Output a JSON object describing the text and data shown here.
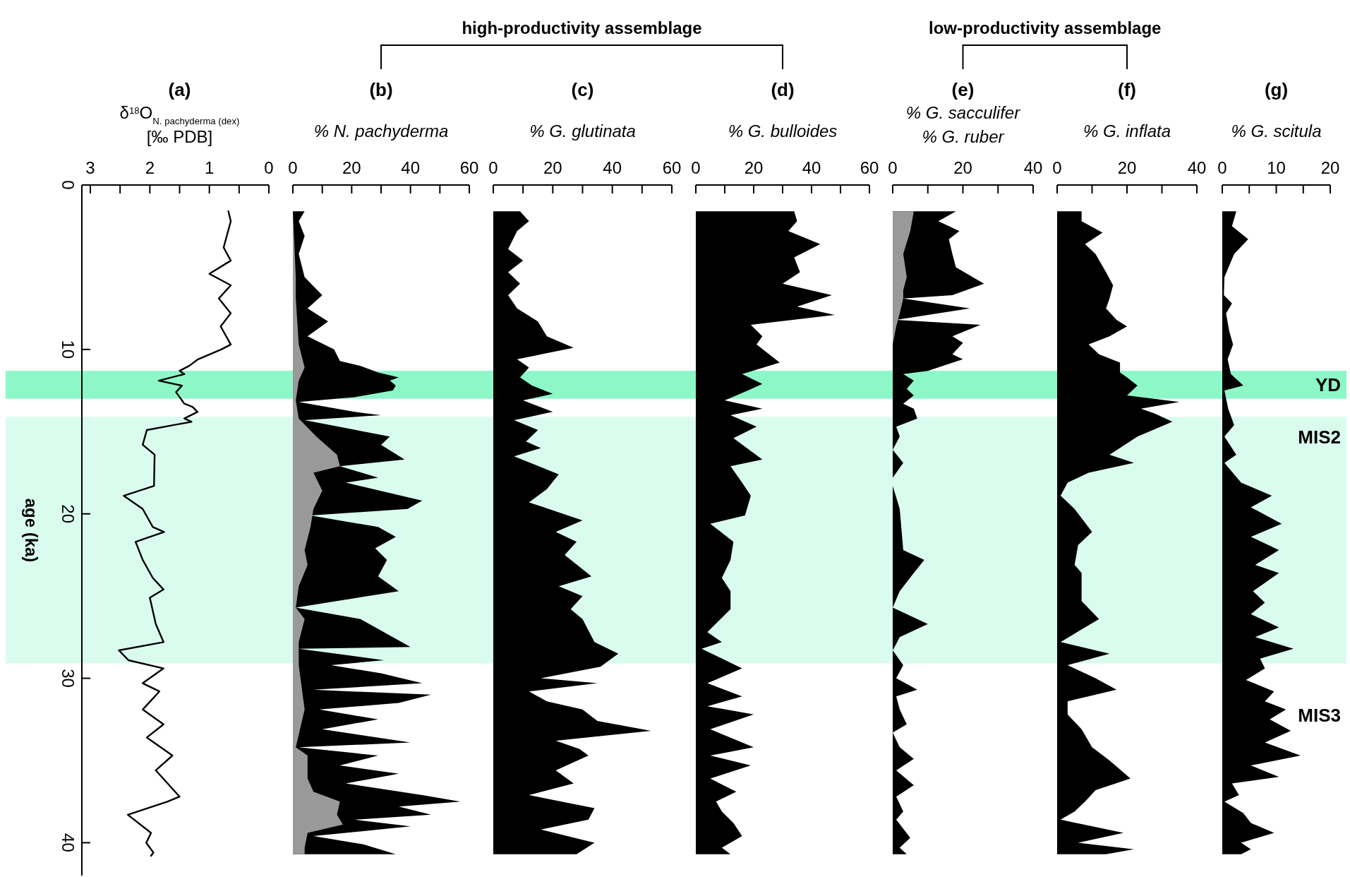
{
  "chart_data": [
    {
      "type": "line",
      "orientation": "horizontal",
      "title": "(a)",
      "xlabel": "δ$^{18}$O$_{N. pachyderma (dex)}$\n[‰ PDB]",
      "ylabel": "age (ka)",
      "xlim": [
        3,
        0
      ],
      "xticks": [
        3,
        {
          "value": 2.5,
          "label": null
        },
        2,
        {
          "value": 1.5,
          "label": null
        },
        1,
        {
          "value": 0.5,
          "label": null
        },
        0
      ],
      "ylim": [
        42,
        0
      ],
      "yticks": [
        0,
        10,
        20,
        30,
        40
      ],
      "bands": [
        {
          "axis": "y",
          "from": 11.3,
          "to": 13.0,
          "color": "#8ef7c8"
        },
        {
          "axis": "y",
          "from": 14.1,
          "to": 29.1,
          "color": "#dafcef"
        }
      ],
      "series": [
        {
          "color": "#000000",
          "x": [
            1.6,
            2.2,
            3.8,
            4.6,
            5.4,
            6.1,
            6.9,
            7.8,
            8.6,
            9.7,
            10.0,
            10.6,
            11.0,
            11.3,
            11.5,
            11.9,
            12.2,
            12.6,
            13.3,
            13.5,
            13.8,
            14.2,
            14.4,
            14.9,
            15.8,
            16.4,
            18.3,
            18.9,
            19.7,
            20.8,
            21.1,
            21.7,
            22.8,
            23.9,
            24.6,
            25.1,
            26.7,
            27.8,
            28.3,
            28.9,
            29.4,
            30.3,
            30.8,
            31.9,
            32.8,
            33.6,
            34.7,
            35.6,
            37.2,
            37.5,
            38.3,
            39.4,
            40.0,
            40.6,
            40.8
          ],
          "values": [
            0.68,
            0.64,
            0.76,
            0.64,
            1.0,
            0.64,
            0.84,
            0.64,
            0.81,
            0.64,
            0.8,
            1.19,
            1.34,
            1.5,
            1.42,
            1.85,
            1.46,
            1.56,
            1.42,
            1.28,
            1.2,
            1.42,
            1.3,
            2.05,
            2.12,
            1.92,
            1.93,
            2.44,
            2.12,
            1.95,
            1.76,
            2.24,
            2.12,
            1.95,
            1.77,
            2.0,
            1.9,
            1.77,
            2.52,
            2.36,
            1.77,
            2.12,
            1.84,
            2.12,
            1.77,
            2.05,
            1.62,
            1.9,
            1.5,
            1.7,
            2.37,
            1.98,
            2.06,
            1.94,
            1.98
          ]
        }
      ]
    },
    {
      "type": "area",
      "orientation": "horizontal",
      "title": "(b)",
      "xlabel": "% N. pachyderma",
      "xlim": [
        0,
        60
      ],
      "xticks": [
        0,
        {
          "value": 10,
          "label": null
        },
        20,
        {
          "value": 30,
          "label": null
        },
        40,
        {
          "value": 50,
          "label": null
        },
        60
      ],
      "ylim": [
        42,
        0
      ],
      "tick_labels": "x",
      "bands": [
        {
          "axis": "y",
          "from": 11.3,
          "to": 13.0,
          "color": "#8ef7c8"
        },
        {
          "axis": "y",
          "from": 14.1,
          "to": 29.1,
          "color": "#dafcef"
        }
      ],
      "series": [
        {
          "color": "#000000",
          "x": [
            1.6,
            2.2,
            3.1,
            4.2,
            5.6,
            6.7,
            7.5,
            8.3,
            9.2,
            10.0,
            10.7,
            11.0,
            11.4,
            11.7,
            11.9,
            12.2,
            12.5,
            12.9,
            13.2,
            13.8,
            14.0,
            14.3,
            15.3,
            15.8,
            16.7,
            17.1,
            17.8,
            18.1,
            19.2,
            19.7,
            20.1,
            20.8,
            21.4,
            22.1,
            22.8,
            23.8,
            24.7,
            25.7,
            26.4,
            28.1,
            28.2,
            28.9,
            29.2,
            29.7,
            30.3,
            30.7,
            31.0,
            31.5,
            31.9,
            32.5,
            33.1,
            33.9,
            34.2,
            34.7,
            35.3,
            35.8,
            36.4,
            37.1,
            37.5,
            37.8,
            38.3,
            38.6,
            39.0,
            39.6,
            40.1,
            40.7
          ],
          "values": [
            4,
            2,
            4,
            2,
            4,
            10,
            5,
            12,
            5,
            14,
            16,
            23,
            29,
            36,
            33,
            35,
            34,
            21,
            2,
            21,
            30,
            4,
            33,
            30,
            38,
            16,
            29,
            18,
            44,
            39,
            6,
            29,
            35,
            28,
            32,
            29,
            36,
            1,
            23,
            40,
            2,
            31,
            13,
            30,
            44,
            7,
            47,
            36,
            9,
            29,
            10,
            40,
            2,
            29,
            16,
            36,
            18,
            44,
            57,
            36,
            47,
            21,
            40,
            7,
            24,
            35
          ]
        },
        {
          "color": "#999999",
          "x": [
            1.6,
            5.6,
            6.9,
            9.7,
            11.1,
            11.9,
            13.1,
            14.2,
            15.3,
            16.4,
            17.1,
            17.5,
            18.6,
            19.7,
            20.8,
            22.2,
            23.1,
            24.4,
            25.7,
            26.4,
            27.8,
            29.2,
            31.9,
            34.2,
            34.7,
            36.1,
            36.9,
            37.5,
            38.3,
            38.9,
            39.4,
            40.3,
            40.7
          ],
          "values": [
            0,
            1,
            1,
            2,
            4,
            2,
            1,
            2,
            8,
            15,
            16,
            7,
            10,
            7,
            6,
            4,
            5,
            2,
            1,
            4,
            2,
            2,
            4,
            1,
            5,
            5,
            7,
            16,
            15,
            17,
            5,
            4,
            4
          ]
        }
      ]
    },
    {
      "type": "area",
      "orientation": "horizontal",
      "title": "(c)",
      "xlabel": "% G. glutinata",
      "xlim": [
        0,
        60
      ],
      "xticks": [
        0,
        {
          "value": 10,
          "label": null
        },
        20,
        {
          "value": 30,
          "label": null
        },
        40,
        {
          "value": 50,
          "label": null
        },
        60
      ],
      "ylim": [
        42,
        0
      ],
      "tick_labels": "x",
      "annotations": [
        "high-productivity assemblage"
      ],
      "bands": [
        {
          "axis": "y",
          "from": 11.3,
          "to": 13.0,
          "color": "#8ef7c8"
        },
        {
          "axis": "y",
          "from": 14.1,
          "to": 29.1,
          "color": "#dafcef"
        }
      ],
      "series": [
        {
          "color": "#000000",
          "x": [
            1.6,
            2.2,
            2.8,
            3.9,
            4.6,
            5.3,
            6.0,
            6.7,
            7.5,
            8.3,
            9.2,
            9.9,
            10.6,
            11.1,
            11.7,
            12.2,
            12.7,
            13.1,
            13.8,
            14.3,
            14.9,
            15.6,
            16.0,
            16.5,
            17.6,
            18.5,
            19.3,
            20.4,
            21.1,
            21.7,
            22.5,
            23.8,
            24.4,
            25.0,
            25.8,
            26.4,
            27.8,
            28.5,
            29.3,
            30.0,
            30.3,
            30.8,
            31.4,
            31.9,
            32.6,
            33.2,
            33.8,
            34.3,
            34.7,
            35.6,
            36.4,
            37.1,
            37.9,
            38.6,
            39.2,
            40.0,
            40.7
          ],
          "values": [
            9,
            12,
            8,
            5,
            10,
            5,
            9,
            5,
            8,
            15,
            18,
            27,
            8,
            12,
            9,
            13,
            20,
            10,
            20,
            7,
            15,
            11,
            16,
            7,
            22,
            18,
            12,
            30,
            21,
            28,
            24,
            33,
            22,
            30,
            26,
            30,
            34,
            42,
            36,
            16,
            35,
            12,
            18,
            30,
            35,
            53,
            21,
            29,
            32,
            21,
            27,
            12,
            34,
            32,
            16,
            34,
            28
          ]
        }
      ]
    },
    {
      "type": "area",
      "orientation": "horizontal",
      "title": "(d)",
      "xlabel": "% G. bulloides",
      "xlim": [
        0,
        60
      ],
      "xticks": [
        0,
        {
          "value": 10,
          "label": null
        },
        20,
        {
          "value": 30,
          "label": null
        },
        40,
        {
          "value": 50,
          "label": null
        },
        60
      ],
      "ylim": [
        42,
        0
      ],
      "tick_labels": "x",
      "bands": [
        {
          "axis": "y",
          "from": 11.3,
          "to": 13.0,
          "color": "#8ef7c8"
        },
        {
          "axis": "y",
          "from": 14.1,
          "to": 29.1,
          "color": "#dafcef"
        }
      ],
      "series": [
        {
          "color": "#000000",
          "x": [
            1.6,
            2.2,
            2.8,
            3.6,
            4.4,
            5.3,
            6.0,
            6.7,
            7.4,
            7.9,
            8.5,
            9.2,
            9.7,
            10.8,
            11.5,
            12.1,
            12.5,
            13.1,
            13.6,
            14.0,
            14.7,
            15.4,
            16.7,
            17.1,
            18.1,
            18.9,
            20.1,
            20.6,
            21.7,
            22.8,
            23.9,
            24.7,
            25.8,
            27.2,
            27.8,
            28.2,
            29.4,
            30.3,
            31.1,
            31.7,
            32.2,
            33.1,
            34.2,
            34.7,
            35.3,
            36.1,
            36.9,
            37.5,
            38.1,
            38.8,
            39.6,
            40.3,
            40.7
          ],
          "values": [
            34,
            35,
            32,
            43,
            34,
            36,
            30,
            47,
            35,
            48,
            19,
            23,
            21,
            29,
            16,
            23,
            18,
            10,
            23,
            12,
            21,
            13,
            23,
            12,
            16,
            19,
            17,
            5,
            13,
            12,
            9,
            12,
            12,
            4,
            9,
            2,
            16,
            4,
            16,
            4,
            20,
            5,
            20,
            5,
            19,
            5,
            14,
            7,
            9,
            13,
            16,
            9,
            12
          ]
        }
      ]
    },
    {
      "type": "area",
      "orientation": "horizontal",
      "title": "(e)",
      "xlabel": "% G. sacculifer\n% G. ruber",
      "xlim": [
        0,
        40
      ],
      "xticks": [
        0,
        {
          "value": 10,
          "label": null
        },
        20,
        {
          "value": 30,
          "label": null
        },
        40
      ],
      "ylim": [
        42,
        0
      ],
      "tick_labels": "x",
      "annotations": [
        "low-productivity assemblage"
      ],
      "bands": [
        {
          "axis": "y",
          "from": 11.3,
          "to": 13.0,
          "color": "#8ef7c8"
        },
        {
          "axis": "y",
          "from": 14.1,
          "to": 29.1,
          "color": "#dafcef"
        }
      ],
      "series": [
        {
          "color": "#000000",
          "x": [
            1.6,
            2.2,
            2.8,
            3.3,
            4.2,
            5.0,
            6.0,
            6.7,
            6.9,
            7.5,
            8.2,
            8.5,
            9.2,
            9.6,
            10.3,
            10.6,
            11.3,
            11.5,
            11.9,
            12.4,
            12.8,
            13.3,
            13.6,
            14.2,
            14.7,
            15.3,
            16.1,
            16.9,
            17.8,
            18.3,
            19.7,
            22.2,
            22.8,
            23.6,
            24.7,
            25.7,
            26.7,
            27.5,
            28.3,
            29.2,
            30.0,
            30.7,
            31.1,
            31.9,
            32.8,
            33.3,
            34.2,
            34.9,
            35.6,
            36.5,
            37.2,
            38.1,
            38.6,
            39.7,
            40.3,
            40.7
          ],
          "values": [
            18,
            13,
            19,
            16,
            17,
            18,
            26,
            17,
            3,
            22,
            1,
            25,
            17,
            20,
            17,
            20,
            10,
            3,
            6,
            4,
            6,
            3,
            6,
            7,
            1,
            2,
            0,
            3,
            0,
            0,
            2,
            3,
            9,
            6,
            2,
            0,
            10,
            2,
            0,
            3,
            1,
            7,
            1,
            2,
            4,
            0,
            2,
            6,
            1,
            6,
            1,
            3,
            1,
            5,
            2,
            4
          ]
        },
        {
          "color": "#999999",
          "x": [
            1.6,
            2.8,
            4.2,
            5.6,
            6.4,
            6.9,
            7.8,
            8.6,
            9.7,
            10.8
          ],
          "values": [
            6,
            5,
            3,
            4,
            3,
            3,
            2,
            1,
            0,
            0
          ]
        }
      ]
    },
    {
      "type": "area",
      "orientation": "horizontal",
      "title": "(f)",
      "xlabel": "% G. inflata",
      "xlim": [
        0,
        40
      ],
      "xticks": [
        0,
        {
          "value": 10,
          "label": null
        },
        20,
        {
          "value": 30,
          "label": null
        },
        40
      ],
      "ylim": [
        42,
        0
      ],
      "tick_labels": "x",
      "bands": [
        {
          "axis": "y",
          "from": 11.3,
          "to": 13.0,
          "color": "#8ef7c8"
        },
        {
          "axis": "y",
          "from": 14.1,
          "to": 29.1,
          "color": "#dafcef"
        }
      ],
      "series": [
        {
          "color": "#000000",
          "x": [
            1.6,
            2.2,
            2.9,
            3.6,
            4.2,
            5.3,
            6.1,
            6.9,
            7.5,
            8.2,
            8.6,
            9.2,
            9.7,
            10.3,
            10.8,
            11.4,
            11.7,
            12.2,
            12.8,
            13.2,
            13.6,
            13.9,
            14.4,
            15.3,
            16.4,
            16.9,
            17.5,
            18.1,
            18.9,
            19.7,
            21.1,
            21.9,
            23.1,
            23.6,
            25.3,
            26.4,
            26.9,
            27.8,
            28.5,
            29.2,
            30.0,
            30.7,
            31.4,
            32.2,
            33.1,
            34.2,
            35.0,
            36.1,
            36.8,
            37.5,
            38.1,
            38.6,
            39.4,
            40.0,
            40.4,
            40.7
          ],
          "values": [
            7,
            7,
            13,
            8,
            11,
            14,
            16,
            15,
            14,
            17,
            20,
            15,
            9,
            12,
            18,
            18,
            20,
            23,
            20,
            35,
            24,
            28,
            33,
            23,
            15,
            22,
            9,
            3,
            1,
            5,
            10,
            6,
            5,
            7,
            7,
            12,
            8,
            1,
            15,
            3,
            11,
            17,
            3,
            3,
            7,
            10,
            15,
            21,
            11,
            8,
            5,
            1,
            19,
            6,
            22,
            14
          ]
        }
      ]
    },
    {
      "type": "area",
      "orientation": "horizontal",
      "title": "(g)",
      "xlabel": "% G. scitula",
      "xlim": [
        0,
        20
      ],
      "xticks": [
        0,
        {
          "value": 5,
          "label": null
        },
        10,
        {
          "value": 15,
          "label": null
        },
        20
      ],
      "ylim": [
        42,
        0
      ],
      "tick_labels": "x",
      "annotations": [
        "MIS3"
      ],
      "bands": [
        {
          "axis": "y",
          "from": 11.3,
          "to": 13.0,
          "color": "#8ef7c8",
          "label": "YD"
        },
        {
          "axis": "y",
          "from": 14.1,
          "to": 29.1,
          "color": "#dafcef",
          "label": "MIS2"
        }
      ],
      "series": [
        {
          "color": "#000000",
          "x": [
            1.6,
            2.5,
            3.3,
            4.2,
            5.6,
            6.7,
            7.2,
            7.8,
            8.9,
            9.7,
            10.6,
            11.5,
            12.2,
            12.5,
            13.6,
            14.6,
            15.3,
            16.4,
            16.9,
            18.1,
            18.9,
            19.6,
            20.6,
            21.4,
            22.2,
            23.1,
            23.6,
            24.7,
            25.4,
            26.1,
            26.9,
            27.5,
            28.2,
            28.8,
            29.4,
            30.1,
            30.8,
            31.4,
            31.9,
            32.5,
            33.2,
            33.9,
            34.7,
            35.3,
            36.0,
            36.4,
            37.1,
            37.5,
            38.2,
            38.8,
            39.4,
            40.0,
            40.4,
            40.7
          ],
          "values": [
            2.6,
            1.8,
            4.8,
            2.2,
            0.4,
            0.3,
            1.8,
            0.7,
            1.3,
            2.0,
            1.0,
            1.6,
            3.9,
            0.4,
            1.1,
            2.2,
            0.4,
            2.6,
            0.4,
            3.5,
            9.2,
            5.3,
            11.0,
            5.3,
            10.5,
            6.1,
            10.5,
            5.7,
            7.9,
            5.3,
            10.5,
            6.1,
            13.2,
            7.0,
            7.9,
            4.4,
            9.6,
            7.9,
            11.8,
            8.8,
            12.7,
            7.9,
            14.5,
            5.3,
            10.5,
            1.8,
            3.1,
            0.4,
            3.9,
            5.3,
            9.6,
            3.5,
            5.3,
            3.5
          ]
        }
      ]
    }
  ]
}
